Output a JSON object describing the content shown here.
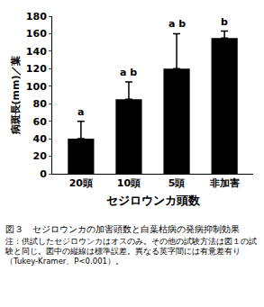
{
  "chart_data": {
    "type": "bar",
    "x_label": "セジロウンカ頭数",
    "y_label": "病斑長(mm)／葉",
    "categories": [
      "20頭",
      "10頭",
      "5頭",
      "非加害"
    ],
    "values": [
      40,
      85,
      120,
      155
    ],
    "errors": [
      20,
      20,
      40,
      8
    ],
    "significance_letters": [
      "a",
      "a b",
      "a b",
      "b"
    ],
    "color": "#000000",
    "ylim": [
      0,
      180
    ],
    "yticks": [
      0,
      20,
      40,
      60,
      80,
      100,
      120,
      140,
      160,
      180
    ],
    "grid": false,
    "caption": "図３　セジロウンカの加害頭数と白葉枯病の発病抑制効果",
    "note": "注：供試したセジロウンカはオスのみ。その他の試験方法は図１の試験と同じ。図中の縦線は標準誤差。異なる英字間には有意差有り（Tukey-Kramer、P<0.001）。"
  }
}
